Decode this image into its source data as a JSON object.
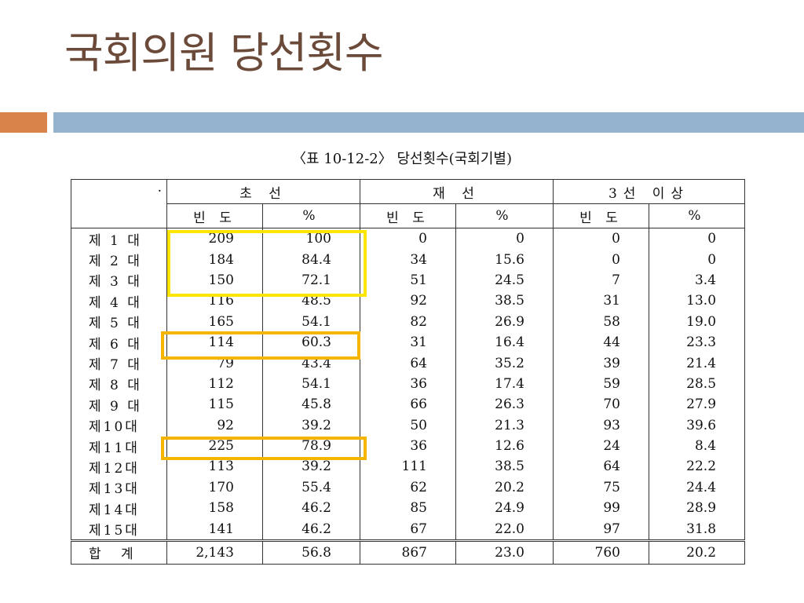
{
  "slide": {
    "title": "국회의원 당선횟수"
  },
  "table": {
    "caption": "〈표 10-12-2〉 당선횟수(국회기별)",
    "group_headers": [
      "초 선",
      "재 선",
      "3선 이상"
    ],
    "sub_headers": [
      "빈 도",
      "%",
      "빈 도",
      "%",
      "빈 도",
      "%"
    ],
    "header_dot": ".",
    "rows": [
      {
        "label": "제 1 대",
        "cells": [
          "209",
          "100",
          "0",
          "0",
          "0",
          "0"
        ]
      },
      {
        "label": "제 2 대",
        "cells": [
          "184",
          "84.4",
          "34",
          "15.6",
          "0",
          "0"
        ]
      },
      {
        "label": "제 3 대",
        "cells": [
          "150",
          "72.1",
          "51",
          "24.5",
          "7",
          "3.4"
        ]
      },
      {
        "label": "제 4 대",
        "cells": [
          "116",
          "48.5",
          "92",
          "38.5",
          "31",
          "13.0"
        ]
      },
      {
        "label": "제 5 대",
        "cells": [
          "165",
          "54.1",
          "82",
          "26.9",
          "58",
          "19.0"
        ]
      },
      {
        "label": "제 6 대",
        "cells": [
          "114",
          "60.3",
          "31",
          "16.4",
          "44",
          "23.3"
        ]
      },
      {
        "label": "제 7 대",
        "cells": [
          "79",
          "43.4",
          "64",
          "35.2",
          "39",
          "21.4"
        ]
      },
      {
        "label": "제 8 대",
        "cells": [
          "112",
          "54.1",
          "36",
          "17.4",
          "59",
          "28.5"
        ]
      },
      {
        "label": "제 9 대",
        "cells": [
          "115",
          "45.8",
          "66",
          "26.3",
          "70",
          "27.9"
        ]
      },
      {
        "label": "제10대",
        "cells": [
          "92",
          "39.2",
          "50",
          "21.3",
          "93",
          "39.6"
        ]
      },
      {
        "label": "제11대",
        "cells": [
          "225",
          "78.9",
          "36",
          "12.6",
          "24",
          "8.4"
        ]
      },
      {
        "label": "제12대",
        "cells": [
          "113",
          "39.2",
          "111",
          "38.5",
          "64",
          "22.2"
        ]
      },
      {
        "label": "제13대",
        "cells": [
          "170",
          "55.4",
          "62",
          "20.2",
          "75",
          "24.4"
        ]
      },
      {
        "label": "제14대",
        "cells": [
          "158",
          "46.2",
          "85",
          "24.9",
          "99",
          "28.9"
        ]
      },
      {
        "label": "제15대",
        "cells": [
          "141",
          "46.2",
          "67",
          "22.0",
          "97",
          "31.8"
        ]
      }
    ],
    "total": {
      "label": "합  계",
      "cells": [
        "2,143",
        "56.8",
        "867",
        "23.0",
        "760",
        "20.2"
      ]
    }
  },
  "highlights": [
    {
      "name": "highlight-rows-1-3",
      "color": "#ffe600"
    },
    {
      "name": "highlight-row-6",
      "color": "#f5b400"
    },
    {
      "name": "highlight-row-11",
      "color": "#f5b400"
    }
  ]
}
